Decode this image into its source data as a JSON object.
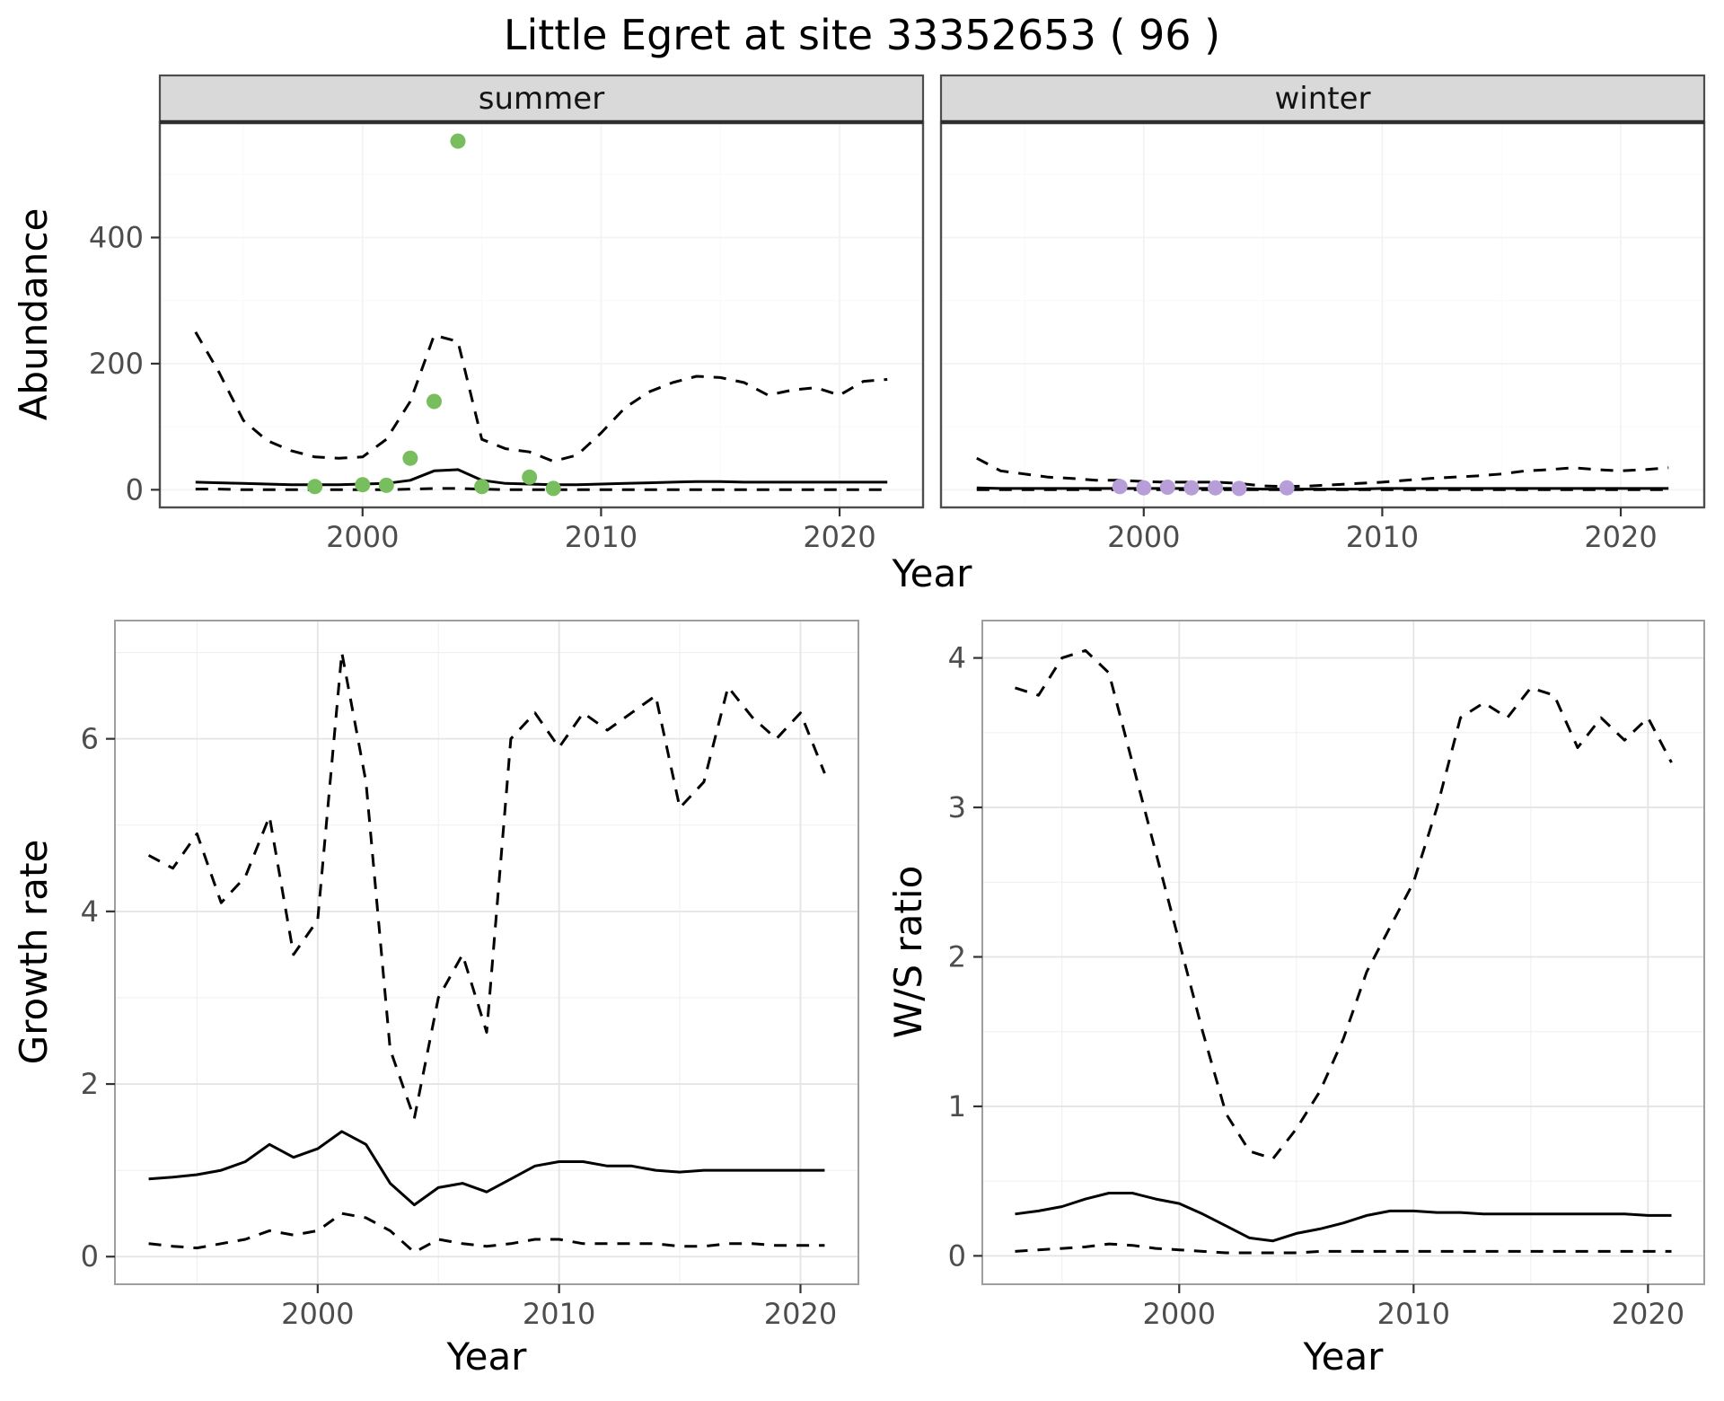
{
  "title": "Little Egret at site 33352653 ( 96 )",
  "axes": {
    "abundance_ylabel": "Abundance",
    "growth_ylabel": "Growth rate",
    "ws_ylabel": "W/S ratio",
    "xlabel_top": "Year",
    "xlabel_growth": "Year",
    "xlabel_ws": "Year"
  },
  "facets": {
    "summer": "summer",
    "winter": "winter"
  },
  "colors": {
    "summer_points": "#78be5e",
    "winter_points": "#b79ed8",
    "line": "#000000",
    "strip_bg": "#d9d9d9",
    "strip_border": "#4d4d4d",
    "facet_border": "#4d4d4d",
    "facet_top_rule": "#2e2e2e",
    "panel_border": "#9e9e9e",
    "grid_major": "#e4e4e4",
    "grid_minor": "#f0f0f0",
    "tick": "#333333",
    "tick_label": "#4d4d4d"
  },
  "chart_data": [
    {
      "id": "abundance-summer",
      "type": "line",
      "facet": "summer",
      "ylabel": "Abundance",
      "xlabel": "Year",
      "xlim": [
        1991.5,
        2023.5
      ],
      "ylim": [
        -28,
        583
      ],
      "xticks": [
        2000,
        2010,
        2020
      ],
      "yticks": [
        0,
        200,
        400
      ],
      "x": [
        1993,
        1994,
        1995,
        1996,
        1997,
        1998,
        1999,
        2000,
        2001,
        2002,
        2003,
        2004,
        2005,
        2006,
        2007,
        2008,
        2009,
        2010,
        2011,
        2012,
        2013,
        2014,
        2015,
        2016,
        2017,
        2018,
        2019,
        2020,
        2021,
        2022
      ],
      "series": [
        {
          "name": "upper_ci",
          "style": "dashed",
          "values": [
            250,
            185,
            110,
            78,
            62,
            52,
            50,
            52,
            80,
            140,
            245,
            235,
            80,
            65,
            60,
            45,
            55,
            90,
            130,
            155,
            170,
            180,
            178,
            170,
            150,
            158,
            162,
            150,
            172,
            175
          ]
        },
        {
          "name": "mean",
          "style": "solid",
          "values": [
            12,
            11,
            10,
            9,
            8,
            8,
            8,
            9,
            10,
            15,
            30,
            32,
            15,
            10,
            9,
            8,
            8,
            9,
            10,
            11,
            12,
            13,
            13,
            12,
            12,
            12,
            12,
            12,
            12,
            12
          ]
        },
        {
          "name": "lower_ci",
          "style": "dashed",
          "values": [
            1,
            1,
            0,
            0,
            0,
            0,
            0,
            0,
            0,
            1,
            2,
            2,
            1,
            0,
            0,
            0,
            0,
            0,
            0,
            0,
            0,
            0,
            0,
            0,
            0,
            0,
            0,
            0,
            0,
            0
          ]
        }
      ],
      "points": {
        "name": "observed-counts-summer",
        "color": "#78be5e",
        "x": [
          1998,
          2000,
          2001,
          2002,
          2003,
          2004,
          2005,
          2007,
          2008
        ],
        "y": [
          5,
          8,
          7,
          50,
          140,
          553,
          5,
          20,
          2
        ]
      }
    },
    {
      "id": "abundance-winter",
      "type": "line",
      "facet": "winter",
      "ylabel": "Abundance",
      "xlabel": "Year",
      "xlim": [
        1991.5,
        2023.5
      ],
      "ylim": [
        -28,
        583
      ],
      "xticks": [
        2000,
        2010,
        2020
      ],
      "yticks": [
        0,
        200,
        400
      ],
      "x": [
        1993,
        1994,
        1995,
        1996,
        1997,
        1998,
        1999,
        2000,
        2001,
        2002,
        2003,
        2004,
        2005,
        2006,
        2007,
        2008,
        2009,
        2010,
        2011,
        2012,
        2013,
        2014,
        2015,
        2016,
        2017,
        2018,
        2019,
        2020,
        2021,
        2022
      ],
      "series": [
        {
          "name": "upper_ci",
          "style": "dashed",
          "values": [
            50,
            30,
            25,
            20,
            18,
            15,
            15,
            13,
            12,
            12,
            12,
            10,
            6,
            5,
            6,
            8,
            10,
            12,
            15,
            18,
            20,
            22,
            25,
            30,
            32,
            35,
            32,
            30,
            32,
            35
          ]
        },
        {
          "name": "mean",
          "style": "solid",
          "values": [
            3,
            2,
            2,
            2,
            2,
            2,
            2,
            2,
            2,
            2,
            2,
            2,
            1,
            1,
            1,
            1,
            1,
            2,
            2,
            2,
            2,
            2,
            2,
            2,
            2,
            2,
            2,
            2,
            2,
            2
          ]
        },
        {
          "name": "lower_ci",
          "style": "dashed",
          "values": [
            0,
            0,
            0,
            0,
            0,
            0,
            0,
            0,
            0,
            0,
            0,
            0,
            0,
            0,
            0,
            0,
            0,
            0,
            0,
            0,
            0,
            0,
            0,
            0,
            0,
            0,
            0,
            0,
            0,
            0
          ]
        }
      ],
      "points": {
        "name": "observed-counts-winter",
        "color": "#b79ed8",
        "x": [
          1999,
          2000,
          2001,
          2002,
          2003,
          2004,
          2006
        ],
        "y": [
          5,
          3,
          4,
          3,
          3,
          2,
          3
        ]
      }
    },
    {
      "id": "growth-rate",
      "type": "line",
      "facet": null,
      "ylabel": "Growth rate",
      "xlabel": "Year",
      "xlim": [
        1991.6,
        2022.4
      ],
      "ylim": [
        -0.32,
        7.37
      ],
      "xticks": [
        2000,
        2010,
        2020
      ],
      "yticks": [
        0,
        2,
        4,
        6
      ],
      "x": [
        1993,
        1994,
        1995,
        1996,
        1997,
        1998,
        1999,
        2000,
        2001,
        2002,
        2003,
        2004,
        2005,
        2006,
        2007,
        2008,
        2009,
        2010,
        2011,
        2012,
        2013,
        2014,
        2015,
        2016,
        2017,
        2018,
        2019,
        2020,
        2021
      ],
      "series": [
        {
          "name": "upper_ci",
          "style": "dashed",
          "values": [
            4.65,
            4.5,
            4.9,
            4.1,
            4.4,
            5.1,
            3.5,
            3.9,
            7.0,
            5.5,
            2.4,
            1.6,
            3.0,
            3.5,
            2.6,
            6.0,
            6.3,
            5.9,
            6.3,
            6.1,
            6.3,
            6.5,
            5.2,
            5.5,
            6.6,
            6.25,
            6.0,
            6.3,
            5.6
          ]
        },
        {
          "name": "mean",
          "style": "solid",
          "values": [
            0.9,
            0.92,
            0.95,
            1.0,
            1.1,
            1.3,
            1.15,
            1.25,
            1.45,
            1.3,
            0.85,
            0.6,
            0.8,
            0.85,
            0.75,
            0.9,
            1.05,
            1.1,
            1.1,
            1.05,
            1.05,
            1.0,
            0.98,
            1.0,
            1.0,
            1.0,
            1.0,
            1.0,
            1.0
          ]
        },
        {
          "name": "lower_ci",
          "style": "dashed",
          "values": [
            0.15,
            0.12,
            0.1,
            0.15,
            0.2,
            0.3,
            0.25,
            0.3,
            0.5,
            0.45,
            0.3,
            0.05,
            0.2,
            0.15,
            0.12,
            0.15,
            0.2,
            0.2,
            0.15,
            0.15,
            0.15,
            0.15,
            0.12,
            0.12,
            0.15,
            0.15,
            0.13,
            0.13,
            0.13
          ]
        }
      ],
      "points": null
    },
    {
      "id": "ws-ratio",
      "type": "line",
      "facet": null,
      "ylabel": "W/S ratio",
      "xlabel": "Year",
      "xlim": [
        1991.6,
        2022.4
      ],
      "ylim": [
        -0.19,
        4.25
      ],
      "xticks": [
        2000,
        2010,
        2020
      ],
      "yticks": [
        0,
        1,
        2,
        3,
        4
      ],
      "x": [
        1993,
        1994,
        1995,
        1996,
        1997,
        1998,
        1999,
        2000,
        2001,
        2002,
        2003,
        2004,
        2005,
        2006,
        2007,
        2008,
        2009,
        2010,
        2011,
        2012,
        2013,
        2014,
        2015,
        2016,
        2017,
        2018,
        2019,
        2020,
        2021
      ],
      "series": [
        {
          "name": "upper_ci",
          "style": "dashed",
          "values": [
            3.8,
            3.75,
            4.0,
            4.05,
            3.9,
            3.3,
            2.7,
            2.1,
            1.5,
            0.95,
            0.7,
            0.65,
            0.85,
            1.1,
            1.45,
            1.9,
            2.2,
            2.5,
            3.0,
            3.6,
            3.7,
            3.6,
            3.8,
            3.75,
            3.4,
            3.6,
            3.45,
            3.6,
            3.3
          ]
        },
        {
          "name": "mean",
          "style": "solid",
          "values": [
            0.28,
            0.3,
            0.33,
            0.38,
            0.42,
            0.42,
            0.38,
            0.35,
            0.28,
            0.2,
            0.12,
            0.1,
            0.15,
            0.18,
            0.22,
            0.27,
            0.3,
            0.3,
            0.29,
            0.29,
            0.28,
            0.28,
            0.28,
            0.28,
            0.28,
            0.28,
            0.28,
            0.27,
            0.27
          ]
        },
        {
          "name": "lower_ci",
          "style": "dashed",
          "values": [
            0.03,
            0.04,
            0.05,
            0.06,
            0.08,
            0.07,
            0.05,
            0.04,
            0.03,
            0.02,
            0.02,
            0.02,
            0.02,
            0.03,
            0.03,
            0.03,
            0.03,
            0.03,
            0.03,
            0.03,
            0.03,
            0.03,
            0.03,
            0.03,
            0.03,
            0.03,
            0.03,
            0.03,
            0.03
          ]
        }
      ],
      "points": null
    }
  ]
}
